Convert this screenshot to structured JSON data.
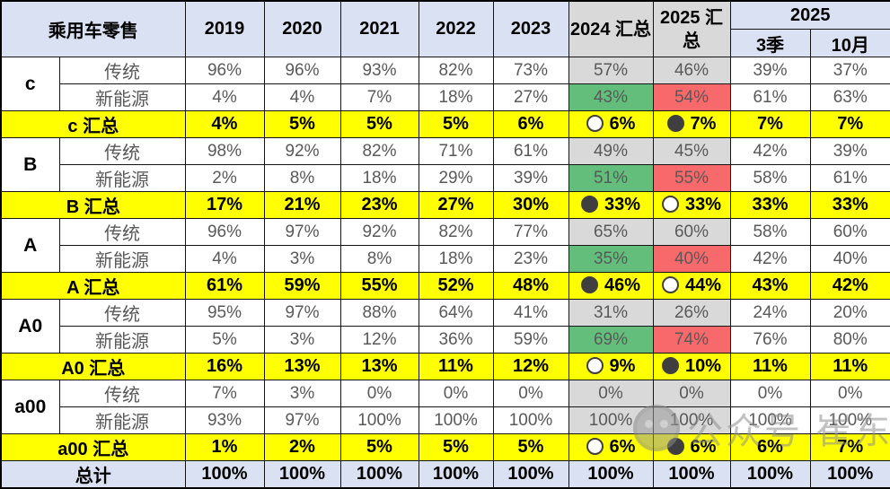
{
  "colors": {
    "header_blue": "#d9e1f2",
    "summary_yellow": "#ffff00",
    "col_gray": "#d9d9d9",
    "green_2024": "#63be7b",
    "red_2025": "#f8696b",
    "data_text": "#595959"
  },
  "header": {
    "title": "乘用车零售",
    "years": [
      "2019",
      "2020",
      "2021",
      "2022",
      "2023"
    ],
    "col_2024_total": "2024 汇总",
    "col_2025_total": "2025 汇总",
    "col_2025_group": "2025",
    "col_2025_sub": [
      "3季",
      "10月"
    ]
  },
  "segments": [
    {
      "label": "c",
      "rows": [
        {
          "type": "传统",
          "values": [
            "96%",
            "96%",
            "93%",
            "82%",
            "73%",
            "57%",
            "46%",
            "39%",
            "37%"
          ],
          "bg2024": "gray",
          "bg2025": "gray"
        },
        {
          "type": "新能源",
          "values": [
            "4%",
            "4%",
            "7%",
            "18%",
            "27%",
            "43%",
            "54%",
            "61%",
            "63%"
          ],
          "bg2024": "green",
          "bg2025": "red"
        }
      ],
      "summary": {
        "label": "c 汇总",
        "values": [
          "4%",
          "5%",
          "5%",
          "5%",
          "6%",
          "6%",
          "7%",
          "7%",
          "7%"
        ],
        "icon2024": "white",
        "icon2025": "dark"
      }
    },
    {
      "label": "B",
      "rows": [
        {
          "type": "传统",
          "values": [
            "98%",
            "92%",
            "82%",
            "71%",
            "61%",
            "49%",
            "45%",
            "42%",
            "39%"
          ],
          "bg2024": "gray",
          "bg2025": "gray"
        },
        {
          "type": "新能源",
          "values": [
            "2%",
            "8%",
            "18%",
            "29%",
            "39%",
            "51%",
            "55%",
            "58%",
            "61%"
          ],
          "bg2024": "green",
          "bg2025": "red"
        }
      ],
      "summary": {
        "label": "B 汇总",
        "values": [
          "17%",
          "21%",
          "23%",
          "27%",
          "30%",
          "33%",
          "33%",
          "33%",
          "33%"
        ],
        "icon2024": "dark",
        "icon2025": "white"
      }
    },
    {
      "label": "A",
      "rows": [
        {
          "type": "传统",
          "values": [
            "96%",
            "97%",
            "92%",
            "82%",
            "77%",
            "65%",
            "60%",
            "58%",
            "60%"
          ],
          "bg2024": "gray",
          "bg2025": "gray"
        },
        {
          "type": "新能源",
          "values": [
            "4%",
            "3%",
            "8%",
            "18%",
            "23%",
            "35%",
            "40%",
            "42%",
            "40%"
          ],
          "bg2024": "green",
          "bg2025": "red"
        }
      ],
      "summary": {
        "label": "A 汇总",
        "values": [
          "61%",
          "59%",
          "55%",
          "52%",
          "48%",
          "46%",
          "44%",
          "43%",
          "42%"
        ],
        "icon2024": "dark",
        "icon2025": "white"
      }
    },
    {
      "label": "A0",
      "rows": [
        {
          "type": "传统",
          "values": [
            "95%",
            "97%",
            "88%",
            "64%",
            "41%",
            "31%",
            "26%",
            "24%",
            "20%"
          ],
          "bg2024": "gray",
          "bg2025": "gray"
        },
        {
          "type": "新能源",
          "values": [
            "5%",
            "3%",
            "12%",
            "36%",
            "59%",
            "69%",
            "74%",
            "76%",
            "80%"
          ],
          "bg2024": "green",
          "bg2025": "red"
        }
      ],
      "summary": {
        "label": "A0 汇总",
        "values": [
          "16%",
          "13%",
          "13%",
          "11%",
          "12%",
          "9%",
          "10%",
          "11%",
          "11%"
        ],
        "icon2024": "white",
        "icon2025": "dark"
      }
    },
    {
      "label": "a00",
      "rows": [
        {
          "type": "传统",
          "values": [
            "7%",
            "3%",
            "0%",
            "0%",
            "0%",
            "0%",
            "0%",
            "0%",
            "0%"
          ],
          "bg2024": "gray",
          "bg2025": "gray"
        },
        {
          "type": "新能源",
          "values": [
            "93%",
            "97%",
            "100%",
            "100%",
            "100%",
            "100%",
            "100%",
            "100%",
            "100%"
          ],
          "bg2024": "gray",
          "bg2025": "gray"
        }
      ],
      "summary": {
        "label": "a00 汇总",
        "values": [
          "1%",
          "2%",
          "5%",
          "5%",
          "5%",
          "6%",
          "6%",
          "6%",
          "7%"
        ],
        "icon2024": "white",
        "icon2025": "dark"
      }
    }
  ],
  "total": {
    "label": "总计",
    "values": [
      "100%",
      "100%",
      "100%",
      "100%",
      "100%",
      "100%",
      "100%",
      "100%",
      "100%"
    ]
  },
  "watermark": {
    "text": "公众号 崔东树",
    "logo": "wechat-account-logo"
  }
}
